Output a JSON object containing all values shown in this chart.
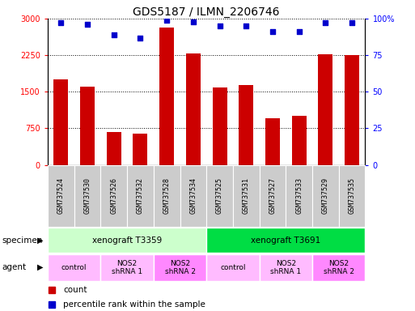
{
  "title": "GDS5187 / ILMN_2206746",
  "samples": [
    "GSM737524",
    "GSM737530",
    "GSM737526",
    "GSM737532",
    "GSM737528",
    "GSM737534",
    "GSM737525",
    "GSM737531",
    "GSM737527",
    "GSM737533",
    "GSM737529",
    "GSM737535"
  ],
  "counts": [
    1750,
    1600,
    680,
    640,
    2820,
    2280,
    1580,
    1630,
    950,
    1000,
    2270,
    2260
  ],
  "percentiles": [
    97,
    96,
    89,
    87,
    99,
    98,
    95,
    95,
    91,
    91,
    97,
    97
  ],
  "ylim_left": [
    0,
    3000
  ],
  "ylim_right": [
    0,
    100
  ],
  "yticks_left": [
    0,
    750,
    1500,
    2250,
    3000
  ],
  "yticks_right": [
    0,
    25,
    50,
    75,
    100
  ],
  "bar_color": "#cc0000",
  "dot_color": "#0000cc",
  "specimen_groups": [
    {
      "label": "xenograft T3359",
      "start": 0,
      "end": 6,
      "color": "#ccffcc"
    },
    {
      "label": "xenograft T3691",
      "start": 6,
      "end": 12,
      "color": "#00dd44"
    }
  ],
  "agent_groups": [
    {
      "label": "control",
      "start": 0,
      "end": 2,
      "color": "#ffbbff"
    },
    {
      "label": "NOS2\nshRNA 1",
      "start": 2,
      "end": 4,
      "color": "#ffbbff"
    },
    {
      "label": "NOS2\nshRNA 2",
      "start": 4,
      "end": 6,
      "color": "#ff88ff"
    },
    {
      "label": "control",
      "start": 6,
      "end": 8,
      "color": "#ffbbff"
    },
    {
      "label": "NOS2\nshRNA 1",
      "start": 8,
      "end": 10,
      "color": "#ffbbff"
    },
    {
      "label": "NOS2\nshRNA 2",
      "start": 10,
      "end": 12,
      "color": "#ff88ff"
    }
  ],
  "tick_bg_color": "#cccccc",
  "bar_width": 0.55
}
